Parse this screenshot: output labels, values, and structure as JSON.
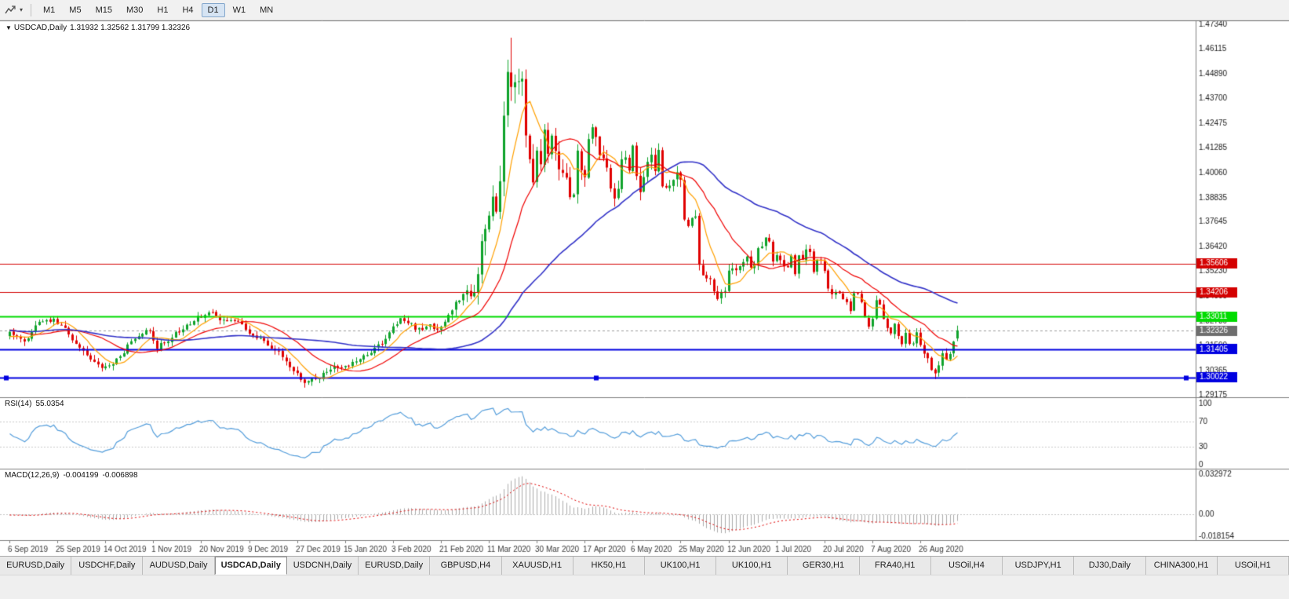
{
  "toolbar": {
    "timeframes": [
      "M1",
      "M5",
      "M15",
      "M30",
      "H1",
      "H4",
      "D1",
      "W1",
      "MN"
    ],
    "active_timeframe": "D1"
  },
  "chart_title": {
    "dropdown_icon": "▼",
    "symbol": "USDCAD,Daily",
    "ohlc": "1.31932 1.32562 1.31799 1.32326"
  },
  "tabs": {
    "items": [
      "EURUSD,Daily",
      "USDCHF,Daily",
      "AUDUSD,Daily",
      "USDCAD,Daily",
      "USDCNH,Daily",
      "EURUSD,Daily",
      "GBPUSD,H4",
      "XAUUSD,H1",
      "HK50,H1",
      "UK100,H1",
      "UK100,H1",
      "GER30,H1",
      "FRA40,H1",
      "USOil,H4",
      "USDJPY,H1",
      "DJ30,Daily",
      "CHINA300,H1",
      "USOil,H1"
    ],
    "active_index": 3
  },
  "chart_data": {
    "type": "candlestick",
    "symbol": "USDCAD",
    "period": "Daily",
    "title_ohlc": {
      "open": "1.31932",
      "high": "1.32562",
      "low": "1.31799",
      "close": "1.32326"
    },
    "last_candle": {
      "open": 1.31932,
      "high": 1.32562,
      "low": 1.31799,
      "close": 1.32326
    },
    "num_candles": 258,
    "price_axis": {
      "max": 1.4745,
      "min": 1.2905,
      "ticks": [
        {
          "value": 1.4734,
          "label": "1.47340"
        },
        {
          "value": 1.46115,
          "label": "1.46115"
        },
        {
          "value": 1.4489,
          "label": "1.44890"
        },
        {
          "value": 1.437,
          "label": "1.43700"
        },
        {
          "value": 1.42475,
          "label": "1.42475"
        },
        {
          "value": 1.41285,
          "label": "1.41285"
        },
        {
          "value": 1.4006,
          "label": "1.40060"
        },
        {
          "value": 1.38835,
          "label": "1.38835"
        },
        {
          "value": 1.37645,
          "label": "1.37645"
        },
        {
          "value": 1.3642,
          "label": "1.36420"
        },
        {
          "value": 1.3523,
          "label": "1.35230"
        },
        {
          "value": 1.34005,
          "label": "1.34005"
        },
        {
          "value": 1.3278,
          "label": "1.32780"
        },
        {
          "value": 1.3159,
          "label": "1.31590"
        },
        {
          "value": 1.30365,
          "label": "1.30365"
        },
        {
          "value": 1.29175,
          "label": "1.29175"
        }
      ]
    },
    "x_axis": {
      "labels": [
        {
          "day": 0,
          "text": "6 Sep 2019"
        },
        {
          "day": 13,
          "text": "25 Sep 2019"
        },
        {
          "day": 26,
          "text": "14 Oct 2019"
        },
        {
          "day": 39,
          "text": "1 Nov 2019"
        },
        {
          "day": 52,
          "text": "20 Nov 2019"
        },
        {
          "day": 65,
          "text": "9 Dec 2019"
        },
        {
          "day": 78,
          "text": "27 Dec 2019"
        },
        {
          "day": 91,
          "text": "15 Jan 2020"
        },
        {
          "day": 104,
          "text": "3 Feb 2020"
        },
        {
          "day": 117,
          "text": "21 Feb 2020"
        },
        {
          "day": 130,
          "text": "11 Mar 2020"
        },
        {
          "day": 143,
          "text": "30 Mar 2020"
        },
        {
          "day": 156,
          "text": "17 Apr 2020"
        },
        {
          "day": 169,
          "text": "6 May 2020"
        },
        {
          "day": 182,
          "text": "25 May 2020"
        },
        {
          "day": 195,
          "text": "12 Jun 2020"
        },
        {
          "day": 208,
          "text": "1 Jul 2020"
        },
        {
          "day": 221,
          "text": "20 Jul 2020"
        },
        {
          "day": 234,
          "text": "7 Aug 2020"
        },
        {
          "day": 247,
          "text": "26 Aug 2020"
        }
      ]
    },
    "close_waypoints": [
      [
        0,
        1.3225
      ],
      [
        2,
        1.3195
      ],
      [
        4,
        1.3175
      ],
      [
        6,
        1.323
      ],
      [
        8,
        1.3265
      ],
      [
        10,
        1.329
      ],
      [
        12,
        1.328
      ],
      [
        14,
        1.325
      ],
      [
        16,
        1.3225
      ],
      [
        18,
        1.3165
      ],
      [
        20,
        1.313
      ],
      [
        22,
        1.31
      ],
      [
        24,
        1.307
      ],
      [
        26,
        1.3045
      ],
      [
        28,
        1.3075
      ],
      [
        30,
        1.311
      ],
      [
        32,
        1.3155
      ],
      [
        34,
        1.319
      ],
      [
        36,
        1.3225
      ],
      [
        38,
        1.322
      ],
      [
        40,
        1.315
      ],
      [
        42,
        1.317
      ],
      [
        44,
        1.32
      ],
      [
        46,
        1.323
      ],
      [
        48,
        1.3255
      ],
      [
        50,
        1.328
      ],
      [
        52,
        1.3305
      ],
      [
        54,
        1.332
      ],
      [
        56,
        1.33
      ],
      [
        58,
        1.328
      ],
      [
        60,
        1.329
      ],
      [
        62,
        1.327
      ],
      [
        64,
        1.324
      ],
      [
        66,
        1.3215
      ],
      [
        68,
        1.3185
      ],
      [
        70,
        1.3165
      ],
      [
        72,
        1.314
      ],
      [
        74,
        1.3105
      ],
      [
        76,
        1.306
      ],
      [
        78,
        1.3015
      ],
      [
        80,
        1.2975
      ],
      [
        82,
        1.299
      ],
      [
        84,
        1.3005
      ],
      [
        86,
        1.303
      ],
      [
        88,
        1.305
      ],
      [
        90,
        1.3045
      ],
      [
        92,
        1.306
      ],
      [
        94,
        1.308
      ],
      [
        96,
        1.31
      ],
      [
        98,
        1.3125
      ],
      [
        100,
        1.3155
      ],
      [
        102,
        1.319
      ],
      [
        104,
        1.325
      ],
      [
        106,
        1.329
      ],
      [
        108,
        1.327
      ],
      [
        110,
        1.3245
      ],
      [
        112,
        1.323
      ],
      [
        114,
        1.3255
      ],
      [
        116,
        1.324
      ],
      [
        118,
        1.328
      ],
      [
        120,
        1.333
      ],
      [
        122,
        1.339
      ],
      [
        124,
        1.342
      ],
      [
        126,
        1.34
      ],
      [
        128,
        1.366
      ],
      [
        129,
        1.372
      ],
      [
        130,
        1.379
      ],
      [
        131,
        1.392
      ],
      [
        132,
        1.382
      ],
      [
        133,
        1.399
      ],
      [
        134,
        1.424
      ],
      [
        135,
        1.45
      ],
      [
        136,
        1.444
      ],
      [
        137,
        1.443
      ],
      [
        138,
        1.449
      ],
      [
        139,
        1.444
      ],
      [
        140,
        1.418
      ],
      [
        141,
        1.406
      ],
      [
        142,
        1.399
      ],
      [
        143,
        1.409
      ],
      [
        144,
        1.406
      ],
      [
        145,
        1.421
      ],
      [
        146,
        1.413
      ],
      [
        147,
        1.421
      ],
      [
        148,
        1.409
      ],
      [
        149,
        1.402
      ],
      [
        150,
        1.401
      ],
      [
        151,
        1.396
      ],
      [
        152,
        1.386
      ],
      [
        153,
        1.389
      ],
      [
        154,
        1.409
      ],
      [
        155,
        1.404
      ],
      [
        156,
        1.4
      ],
      [
        157,
        1.416
      ],
      [
        158,
        1.422
      ],
      [
        159,
        1.416
      ],
      [
        160,
        1.409
      ],
      [
        161,
        1.409
      ],
      [
        162,
        1.403
      ],
      [
        163,
        1.395
      ],
      [
        164,
        1.389
      ],
      [
        165,
        1.394
      ],
      [
        166,
        1.409
      ],
      [
        167,
        1.407
      ],
      [
        168,
        1.403
      ],
      [
        169,
        1.414
      ],
      [
        170,
        1.397
      ],
      [
        171,
        1.392
      ],
      [
        172,
        1.4
      ],
      [
        173,
        1.408
      ],
      [
        174,
        1.41
      ],
      [
        175,
        1.403
      ],
      [
        176,
        1.411
      ],
      [
        177,
        1.395
      ],
      [
        178,
        1.392
      ],
      [
        179,
        1.393
      ],
      [
        180,
        1.396
      ],
      [
        181,
        1.399
      ],
      [
        182,
        1.398
      ],
      [
        183,
        1.378
      ],
      [
        184,
        1.375
      ],
      [
        185,
        1.377
      ],
      [
        186,
        1.378
      ],
      [
        187,
        1.356
      ],
      [
        188,
        1.352
      ],
      [
        189,
        1.35
      ],
      [
        190,
        1.349
      ],
      [
        191,
        1.342
      ],
      [
        192,
        1.339
      ],
      [
        193,
        1.343
      ],
      [
        194,
        1.341
      ],
      [
        195,
        1.354
      ],
      [
        196,
        1.355
      ],
      [
        197,
        1.353
      ],
      [
        198,
        1.354
      ],
      [
        199,
        1.357
      ],
      [
        200,
        1.36
      ],
      [
        201,
        1.355
      ],
      [
        202,
        1.356
      ],
      [
        203,
        1.364
      ],
      [
        204,
        1.365
      ],
      [
        205,
        1.369
      ],
      [
        206,
        1.366
      ],
      [
        207,
        1.358
      ],
      [
        208,
        1.36
      ],
      [
        209,
        1.357
      ],
      [
        210,
        1.355
      ],
      [
        211,
        1.354
      ],
      [
        212,
        1.361
      ],
      [
        213,
        1.351
      ],
      [
        214,
        1.359
      ],
      [
        215,
        1.359
      ],
      [
        216,
        1.362
      ],
      [
        217,
        1.361
      ],
      [
        218,
        1.351
      ],
      [
        219,
        1.357
      ],
      [
        220,
        1.358
      ],
      [
        221,
        1.353
      ],
      [
        222,
        1.345
      ],
      [
        223,
        1.341
      ],
      [
        224,
        1.341
      ],
      [
        225,
        1.341
      ],
      [
        226,
        1.338
      ],
      [
        227,
        1.336
      ],
      [
        228,
        1.333
      ],
      [
        229,
        1.342
      ],
      [
        230,
        1.341
      ],
      [
        231,
        1.338
      ],
      [
        232,
        1.33
      ],
      [
        233,
        1.326
      ],
      [
        234,
        1.329
      ],
      [
        235,
        1.338
      ],
      [
        236,
        1.335
      ],
      [
        237,
        1.33
      ],
      [
        238,
        1.325
      ],
      [
        239,
        1.322
      ],
      [
        240,
        1.327
      ],
      [
        241,
        1.32
      ],
      [
        242,
        1.316
      ],
      [
        243,
        1.322
      ],
      [
        244,
        1.317
      ],
      [
        245,
        1.318
      ],
      [
        246,
        1.322
      ],
      [
        247,
        1.315
      ],
      [
        248,
        1.311
      ],
      [
        249,
        1.309
      ],
      [
        250,
        1.304
      ],
      [
        251,
        1.303
      ],
      [
        252,
        1.306
      ],
      [
        253,
        1.313
      ],
      [
        254,
        1.31
      ],
      [
        255,
        1.311
      ],
      [
        256,
        1.319
      ],
      [
        257,
        1.32326
      ]
    ],
    "volatility_waypoints": [
      [
        0,
        0.006
      ],
      [
        30,
        0.0065
      ],
      [
        60,
        0.0055
      ],
      [
        80,
        0.006
      ],
      [
        100,
        0.0055
      ],
      [
        117,
        0.007
      ],
      [
        124,
        0.01
      ],
      [
        128,
        0.02
      ],
      [
        132,
        0.024
      ],
      [
        136,
        0.027
      ],
      [
        140,
        0.022
      ],
      [
        145,
        0.016
      ],
      [
        152,
        0.014
      ],
      [
        160,
        0.012
      ],
      [
        170,
        0.011
      ],
      [
        180,
        0.01
      ],
      [
        190,
        0.009
      ],
      [
        200,
        0.008
      ],
      [
        210,
        0.007
      ],
      [
        220,
        0.0065
      ],
      [
        230,
        0.006
      ],
      [
        240,
        0.006
      ],
      [
        250,
        0.0065
      ],
      [
        257,
        0.007
      ]
    ],
    "forced_extremes": [
      [
        80,
        "low",
        1.2952
      ],
      [
        135,
        "high",
        1.456
      ],
      [
        136,
        "high",
        1.4668
      ],
      [
        251,
        "low",
        1.2994
      ]
    ],
    "moving_averages": [
      {
        "period": 8,
        "color": "#FFA000",
        "width": 1.2
      },
      {
        "period": 20,
        "color": "#F00000",
        "width": 1.2
      },
      {
        "period": 55,
        "color": "#3232C8",
        "width": 1.6
      }
    ],
    "horizontal_levels": [
      {
        "price": 1.35606,
        "label": "1.35606",
        "color": "#D40000",
        "width": 1,
        "selected": false
      },
      {
        "price": 1.34206,
        "label": "1.34206",
        "color": "#D40000",
        "width": 1,
        "selected": false
      },
      {
        "price": 1.33011,
        "label": "1.33011",
        "color": "#00DC00",
        "width": 2,
        "selected": false
      },
      {
        "price": 1.31405,
        "label": "1.31405",
        "color": "#0000E0",
        "width": 2,
        "selected": false
      },
      {
        "price": 1.30022,
        "label": "1.30022",
        "color": "#0000E0",
        "width": 2,
        "selected": true
      }
    ],
    "current_price": {
      "value": 1.32326,
      "label": "1.32326",
      "badge_color": "#6E6E6E"
    },
    "colors": {
      "up": "#0FA32B",
      "down": "#E00000",
      "background": "#FFFFFF",
      "border": "#808080",
      "grid_dotted": "#C8C8C8",
      "scale_text": "#1A1A1A",
      "date_text": "#3A3A3A",
      "current_price_line": "#9A9A9A"
    },
    "rsi": {
      "label": "RSI(14)",
      "period": 14,
      "value": "55.0354",
      "color": "#539DDB",
      "levels": [
        {
          "value": 100,
          "label": "100",
          "dotted": false
        },
        {
          "value": 70,
          "label": "70",
          "dotted": true
        },
        {
          "value": 30,
          "label": "30",
          "dotted": true
        },
        {
          "value": 0,
          "label": "0",
          "dotted": false
        }
      ]
    },
    "macd": {
      "label": "MACD(12,26,9)",
      "fast": 12,
      "slow": 26,
      "signal": 9,
      "value_main": "-0.004199",
      "value_signal": "-0.006898",
      "histogram_color": "#ABABAB",
      "signal_color": "#E00000",
      "scale": [
        {
          "value": 0.032972,
          "label": "0.032972"
        },
        {
          "value": 0,
          "label": "0.00"
        },
        {
          "value": -0.018154,
          "label": "-0.018154"
        }
      ]
    }
  }
}
